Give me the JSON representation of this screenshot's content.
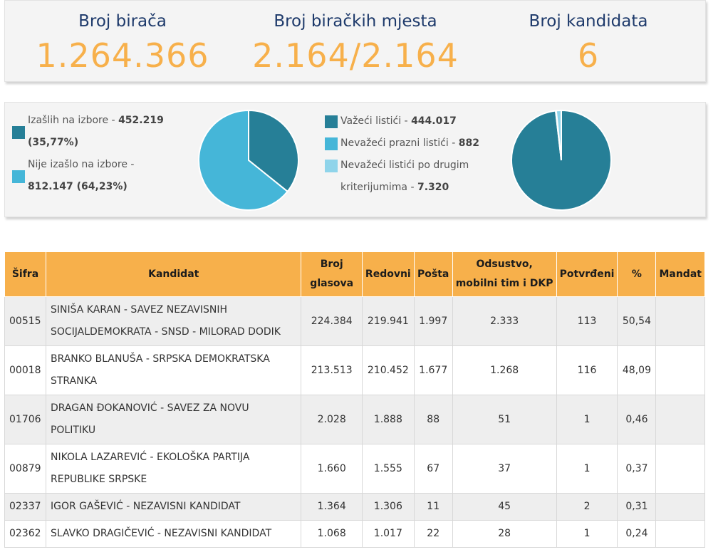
{
  "stats": {
    "voters_label": "Broj birača",
    "voters_value": "1.264.366",
    "stations_label": "Broj biračkih mjesta",
    "stations_value": "2.164/2.164",
    "candidates_label": "Broj kandidata",
    "candidates_value": "6"
  },
  "turnout": {
    "items": [
      {
        "label": "Izašlih na izbore - ",
        "value": "452.219",
        "pct": "(35,77%)",
        "color": "#267f97",
        "share": 0.3577
      },
      {
        "label": "Nije izašlo na izbore - ",
        "value": "812.147 (64,23%)",
        "color": "#45b6d8",
        "share": 0.6423
      }
    ]
  },
  "ballots": {
    "items": [
      {
        "label": "Važeći listići - ",
        "value": "444.017",
        "color": "#267f97",
        "share": 0.9818
      },
      {
        "label": "Nevažeći prazni listići - ",
        "value": "882",
        "color": "#45b6d8",
        "share": 0.0019
      },
      {
        "label": "Nevažeći listići po drugim",
        "label2": "kriterijumima - ",
        "value": "7.320",
        "color": "#8fd4ea",
        "share": 0.0162
      }
    ]
  },
  "table": {
    "headers": {
      "sifra": "Šifra",
      "kandidat": "Kandidat",
      "broj1": "Broj",
      "broj2": "glasova",
      "redovni": "Redovni",
      "posta": "Pošta",
      "odsustvo1": "Odsustvo,",
      "odsustvo2": "mobilni tim i DKP",
      "potvrdeni": "Potvrđeni",
      "pct": "%",
      "mandat": "Mandat"
    },
    "rows": [
      {
        "sifra": "00515",
        "kandidat1": "SINIŠA KARAN - SAVEZ NEZAVISNIH",
        "kandidat2": "SOCIJALDEMOKRATA - SNSD - MILORAD DODIK",
        "broj": "224.384",
        "redovni": "219.941",
        "posta": "1.997",
        "odsustvo": "2.333",
        "potvrdeni": "113",
        "pct": "50,54",
        "mandat": ""
      },
      {
        "sifra": "00018",
        "kandidat1": "BRANKO BLANUŠA - SRPSKA DEMOKRATSKA",
        "kandidat2": "STRANKA",
        "broj": "213.513",
        "redovni": "210.452",
        "posta": "1.677",
        "odsustvo": "1.268",
        "potvrdeni": "116",
        "pct": "48,09",
        "mandat": ""
      },
      {
        "sifra": "01706",
        "kandidat1": "DRAGAN ĐOKANOVIĆ - SAVEZ ZA NOVU",
        "kandidat2": "POLITIKU",
        "broj": "2.028",
        "redovni": "1.888",
        "posta": "88",
        "odsustvo": "51",
        "potvrdeni": "1",
        "pct": "0,46",
        "mandat": ""
      },
      {
        "sifra": "00879",
        "kandidat1": "NIKOLA LAZAREVIĆ - EKOLOŠKA PARTIJA",
        "kandidat2": "REPUBLIKE SRPSKE",
        "broj": "1.660",
        "redovni": "1.555",
        "posta": "67",
        "odsustvo": "37",
        "potvrdeni": "1",
        "pct": "0,37",
        "mandat": ""
      },
      {
        "sifra": "02337",
        "kandidat1": "IGOR GAŠEVIĆ - NEZAVISNI KANDIDAT",
        "kandidat2": "",
        "broj": "1.364",
        "redovni": "1.306",
        "posta": "11",
        "odsustvo": "45",
        "potvrdeni": "2",
        "pct": "0,31",
        "mandat": ""
      },
      {
        "sifra": "02362",
        "kandidat1": "SLAVKO DRAGIČEVIĆ - NEZAVISNI KANDIDAT",
        "kandidat2": "",
        "broj": "1.068",
        "redovni": "1.017",
        "posta": "22",
        "odsustvo": "28",
        "potvrdeni": "1",
        "pct": "0,24",
        "mandat": ""
      }
    ]
  }
}
